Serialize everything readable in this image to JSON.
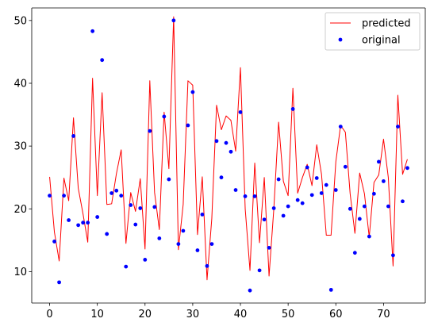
{
  "chart_data": {
    "type": "line",
    "title": "",
    "xlabel": "",
    "ylabel": "",
    "xlim": [
      -3.75,
      78.75
    ],
    "ylim": [
      5,
      52
    ],
    "xticks": [
      0,
      10,
      20,
      30,
      40,
      50,
      60,
      70
    ],
    "yticks": [
      10,
      20,
      30,
      40,
      50
    ],
    "grid": false,
    "legend": "top-right",
    "series": [
      {
        "name": "predicted",
        "kind": "line",
        "color": "#ff0000",
        "x": [
          0,
          1,
          2,
          3,
          4,
          5,
          6,
          7,
          8,
          9,
          10,
          11,
          12,
          13,
          14,
          15,
          16,
          17,
          18,
          19,
          20,
          21,
          22,
          23,
          24,
          25,
          26,
          27,
          28,
          29,
          30,
          31,
          32,
          33,
          34,
          35,
          36,
          37,
          38,
          39,
          40,
          41,
          42,
          43,
          44,
          45,
          46,
          47,
          48,
          49,
          50,
          51,
          52,
          53,
          54,
          55,
          56,
          57,
          58,
          59,
          60,
          61,
          62,
          63,
          64,
          65,
          66,
          67,
          68,
          69,
          70,
          71,
          72,
          73,
          74,
          75
        ],
        "y": [
          25.1,
          16.3,
          11.7,
          24.9,
          21.3,
          34.5,
          23.3,
          19.2,
          14.7,
          40.8,
          22.1,
          38.5,
          20.7,
          20.8,
          25.6,
          29.4,
          14.5,
          22.6,
          19.6,
          24.8,
          13.6,
          40.4,
          22.6,
          16.7,
          35.4,
          26.4,
          50.6,
          13.5,
          20.7,
          40.4,
          39.7,
          15.9,
          25.1,
          8.7,
          18.5,
          36.5,
          32.6,
          34.8,
          34.1,
          29.2,
          42.5,
          20.0,
          10.2,
          27.3,
          14.6,
          25.0,
          9.3,
          20.0,
          33.8,
          24.4,
          22.1,
          39.2,
          22.5,
          25.0,
          27.1,
          23.7,
          30.2,
          25.5,
          15.8,
          15.8,
          27.5,
          33.3,
          32.2,
          22.4,
          16.1,
          25.7,
          22.4,
          15.5,
          24.2,
          25.4,
          31.1,
          25.0,
          10.9,
          38.1,
          25.5,
          27.9
        ]
      },
      {
        "name": "original",
        "kind": "scatter",
        "color": "#0000ff",
        "x": [
          0,
          1,
          2,
          3,
          4,
          5,
          6,
          7,
          8,
          9,
          10,
          11,
          12,
          13,
          14,
          15,
          16,
          17,
          18,
          19,
          20,
          21,
          22,
          23,
          24,
          25,
          26,
          27,
          28,
          29,
          30,
          31,
          32,
          33,
          34,
          35,
          36,
          37,
          38,
          39,
          40,
          41,
          42,
          43,
          44,
          45,
          46,
          47,
          48,
          49,
          50,
          51,
          52,
          53,
          54,
          55,
          56,
          57,
          58,
          59,
          60,
          61,
          62,
          63,
          64,
          65,
          66,
          67,
          68,
          69,
          70,
          71,
          72,
          73,
          74,
          75
        ],
        "y": [
          22.1,
          14.8,
          8.3,
          22.1,
          18.2,
          31.6,
          17.4,
          17.8,
          17.8,
          48.3,
          18.7,
          43.7,
          16.0,
          22.5,
          22.9,
          22.1,
          10.8,
          20.6,
          17.5,
          20.1,
          11.9,
          32.4,
          20.3,
          15.3,
          34.7,
          24.7,
          50.0,
          14.4,
          16.5,
          33.3,
          38.6,
          13.4,
          19.1,
          10.9,
          14.4,
          30.8,
          25.0,
          30.5,
          29.1,
          23.0,
          35.4,
          22.0,
          7.0,
          22.0,
          10.2,
          18.3,
          13.8,
          20.1,
          24.7,
          18.9,
          20.4,
          35.9,
          21.4,
          20.9,
          26.6,
          22.2,
          24.9,
          22.5,
          23.8,
          7.1,
          23.0,
          33.1,
          26.7,
          20.0,
          13.0,
          18.4,
          20.4,
          15.6,
          22.4,
          27.5,
          24.4,
          20.4,
          12.6,
          33.1,
          21.2,
          26.5
        ]
      }
    ]
  }
}
